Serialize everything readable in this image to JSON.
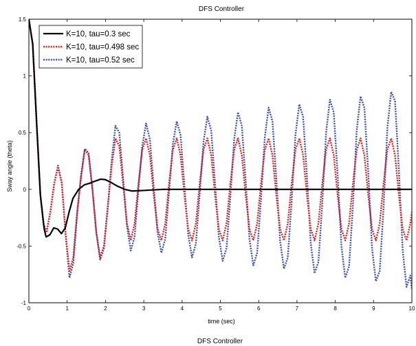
{
  "chart_data": {
    "type": "line",
    "title": "DFS Controller",
    "xlabel": "time (sec)",
    "ylabel": "Sway angle (theta)",
    "xlim": [
      0,
      10
    ],
    "ylim": [
      -1,
      1.5
    ],
    "xticks": [
      0,
      1,
      2,
      3,
      4,
      5,
      6,
      7,
      8,
      9,
      10
    ],
    "yticks": [
      -1,
      -0.5,
      0,
      0.5,
      1,
      1.5
    ],
    "xtick_labels": [
      "0",
      "1",
      "2",
      "3",
      "4",
      "5",
      "6",
      "7",
      "8",
      "9",
      "10"
    ],
    "ytick_labels": [
      "-1",
      "-0.5",
      "0",
      "0.5",
      "1",
      "1.5"
    ],
    "grid": false,
    "legend_position": "top-left",
    "series": [
      {
        "name": "K=10, tau=0.3 sec",
        "color": "#000000",
        "style": "solid",
        "x": [
          0,
          0.1,
          0.2,
          0.3,
          0.4,
          0.45,
          0.55,
          0.65,
          0.75,
          0.85,
          0.95,
          1.05,
          1.15,
          1.3,
          1.45,
          1.6,
          1.75,
          1.88,
          2.0,
          2.15,
          2.3,
          2.5,
          2.7,
          3.0,
          3.5,
          4.0,
          5.0,
          6.0,
          7.0,
          8.0,
          9.0,
          10.0
        ],
        "y": [
          1.5,
          1.28,
          0.6,
          -0.05,
          -0.35,
          -0.42,
          -0.4,
          -0.34,
          -0.35,
          -0.39,
          -0.34,
          -0.2,
          -0.08,
          0.0,
          0.04,
          0.055,
          0.075,
          0.09,
          0.085,
          0.06,
          0.03,
          0.0,
          -0.015,
          -0.01,
          0.0,
          0.0,
          0.0,
          0.0,
          0.0,
          0.0,
          0.0,
          0.0
        ]
      },
      {
        "name": "K=10, tau=0.498 sec",
        "color": "#e0201b",
        "style": "dotted",
        "x": [
          0,
          0.1,
          0.2,
          0.3,
          0.38,
          0.46,
          0.56,
          0.66,
          0.76,
          0.86,
          0.96,
          1.06,
          1.16,
          1.26,
          1.36,
          1.46,
          1.56,
          1.66,
          1.76,
          1.86,
          1.96,
          2.06,
          2.16,
          2.26,
          2.36,
          2.46,
          2.56,
          2.66,
          2.76,
          2.86,
          2.96,
          3.06,
          3.16,
          3.26,
          3.36,
          3.46,
          3.56,
          3.66,
          3.76,
          3.86,
          3.96,
          4.06,
          4.16,
          4.26,
          4.36,
          4.46,
          4.56,
          4.66,
          4.76,
          4.86,
          4.96,
          5.06,
          5.16,
          5.26,
          5.36,
          5.46,
          5.56,
          5.66,
          5.76,
          5.86,
          5.96,
          6.06,
          6.16,
          6.26,
          6.36,
          6.46,
          6.56,
          6.66,
          6.76,
          6.86,
          6.96,
          7.06,
          7.16,
          7.26,
          7.36,
          7.46,
          7.56,
          7.66,
          7.76,
          7.86,
          7.96,
          8.06,
          8.16,
          8.26,
          8.36,
          8.46,
          8.56,
          8.66,
          8.76,
          8.86,
          8.96,
          9.06,
          9.16,
          9.26,
          9.36,
          9.46,
          9.56,
          9.66,
          9.76,
          9.86,
          9.96,
          10.0
        ],
        "y": [
          1.5,
          1.28,
          0.6,
          -0.05,
          -0.3,
          -0.38,
          -0.2,
          0.05,
          0.2,
          0.05,
          -0.4,
          -0.72,
          -0.6,
          -0.2,
          0.1,
          0.35,
          0.3,
          0.0,
          -0.38,
          -0.6,
          -0.5,
          -0.15,
          0.2,
          0.45,
          0.38,
          0.05,
          -0.3,
          -0.45,
          -0.3,
          0.05,
          0.35,
          0.45,
          0.3,
          -0.05,
          -0.35,
          -0.45,
          -0.3,
          0.05,
          0.35,
          0.45,
          0.3,
          -0.05,
          -0.35,
          -0.45,
          -0.3,
          0.05,
          0.35,
          0.45,
          0.3,
          -0.05,
          -0.35,
          -0.45,
          -0.3,
          0.05,
          0.35,
          0.45,
          0.3,
          -0.05,
          -0.35,
          -0.45,
          -0.3,
          0.05,
          0.35,
          0.45,
          0.3,
          -0.05,
          -0.35,
          -0.45,
          -0.3,
          0.05,
          0.35,
          0.45,
          0.3,
          -0.05,
          -0.35,
          -0.45,
          -0.3,
          0.05,
          0.35,
          0.45,
          0.3,
          -0.05,
          -0.35,
          -0.45,
          -0.3,
          0.05,
          0.35,
          0.45,
          0.3,
          -0.05,
          -0.35,
          -0.45,
          -0.3,
          0.05,
          0.35,
          0.45,
          0.3,
          -0.05,
          -0.35,
          -0.45,
          -0.3,
          -0.2
        ]
      },
      {
        "name": "K=10, tau=0.52 sec",
        "color": "#3a4fb0",
        "style": "dotted",
        "x": [
          0,
          0.1,
          0.2,
          0.3,
          0.38,
          0.46,
          0.56,
          0.66,
          0.76,
          0.86,
          0.96,
          1.06,
          1.16,
          1.26,
          1.36,
          1.46,
          1.56,
          1.66,
          1.76,
          1.86,
          1.96,
          2.06,
          2.16,
          2.26,
          2.36,
          2.46,
          2.56,
          2.66,
          2.76,
          2.86,
          2.96,
          3.06,
          3.16,
          3.26,
          3.36,
          3.46,
          3.56,
          3.66,
          3.76,
          3.86,
          3.96,
          4.06,
          4.16,
          4.26,
          4.36,
          4.46,
          4.56,
          4.66,
          4.76,
          4.86,
          4.96,
          5.06,
          5.16,
          5.26,
          5.36,
          5.46,
          5.56,
          5.66,
          5.76,
          5.86,
          5.96,
          6.06,
          6.16,
          6.26,
          6.36,
          6.46,
          6.56,
          6.66,
          6.76,
          6.86,
          6.96,
          7.06,
          7.16,
          7.26,
          7.36,
          7.46,
          7.56,
          7.66,
          7.76,
          7.86,
          7.96,
          8.06,
          8.16,
          8.26,
          8.36,
          8.46,
          8.56,
          8.66,
          8.76,
          8.86,
          8.96,
          9.06,
          9.16,
          9.26,
          9.36,
          9.46,
          9.56,
          9.66,
          9.76,
          9.86,
          9.96,
          10.0
        ],
        "y": [
          1.5,
          1.28,
          0.6,
          -0.05,
          -0.3,
          -0.38,
          -0.2,
          0.05,
          0.21,
          0.06,
          -0.4,
          -0.78,
          -0.65,
          -0.22,
          0.12,
          0.36,
          0.32,
          0.0,
          -0.38,
          -0.62,
          -0.52,
          -0.16,
          0.25,
          0.56,
          0.5,
          0.1,
          -0.32,
          -0.54,
          -0.42,
          0.0,
          0.38,
          0.58,
          0.44,
          0.02,
          -0.38,
          -0.56,
          -0.44,
          -0.02,
          0.4,
          0.6,
          0.48,
          0.04,
          -0.4,
          -0.6,
          -0.48,
          -0.04,
          0.42,
          0.64,
          0.52,
          0.06,
          -0.42,
          -0.63,
          -0.52,
          -0.07,
          0.44,
          0.68,
          0.56,
          0.08,
          -0.44,
          -0.67,
          -0.56,
          -0.09,
          0.46,
          0.72,
          0.6,
          0.1,
          -0.46,
          -0.7,
          -0.6,
          -0.11,
          0.48,
          0.75,
          0.64,
          0.12,
          -0.48,
          -0.74,
          -0.64,
          -0.13,
          0.5,
          0.79,
          0.68,
          0.14,
          -0.5,
          -0.78,
          -0.68,
          -0.15,
          0.52,
          0.82,
          0.72,
          0.16,
          -0.52,
          -0.81,
          -0.72,
          -0.17,
          0.54,
          0.86,
          0.78,
          0.18,
          -0.54,
          -0.86,
          -0.76,
          -0.88
        ]
      }
    ]
  },
  "footer_title": "DFS Controller"
}
